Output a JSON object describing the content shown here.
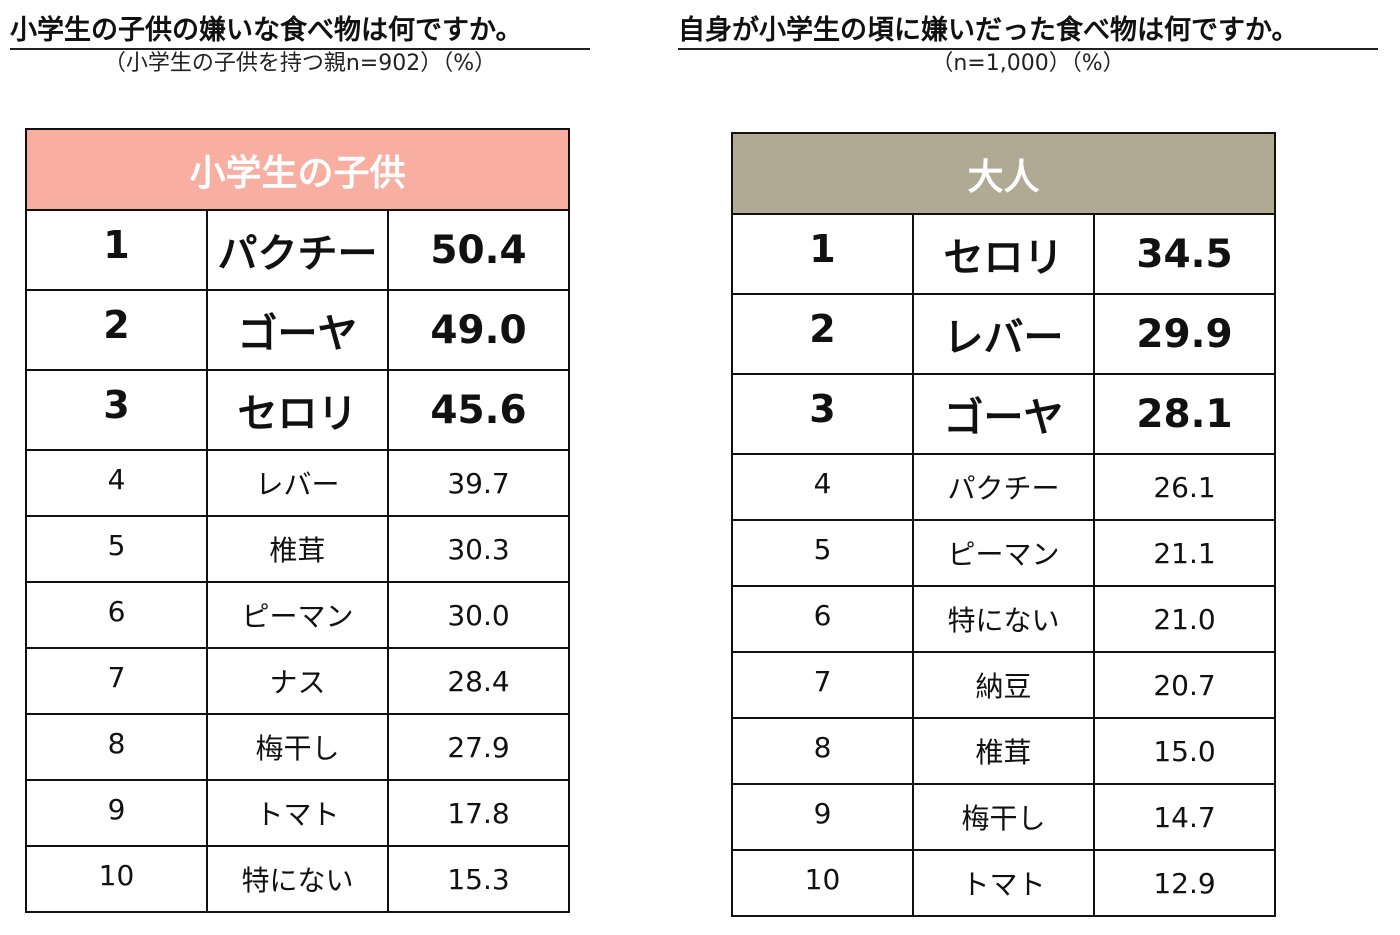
{
  "left": {
    "title": "小学生の子供の嫌いな食べ物は何ですか。",
    "subtitle": "（小学生の子供を持つ親n=902）（%）",
    "header": "小学生の子供",
    "header_color": "#f8aea1",
    "rows": [
      {
        "rank": "1",
        "food": "パクチー",
        "value": "50.4"
      },
      {
        "rank": "2",
        "food": "ゴーヤ",
        "value": "49.0"
      },
      {
        "rank": "3",
        "food": "セロリ",
        "value": "45.6"
      },
      {
        "rank": "4",
        "food": "レバー",
        "value": "39.7"
      },
      {
        "rank": "5",
        "food": "椎茸",
        "value": "30.3"
      },
      {
        "rank": "6",
        "food": "ピーマン",
        "value": "30.0"
      },
      {
        "rank": "7",
        "food": "ナス",
        "value": "28.4"
      },
      {
        "rank": "8",
        "food": "梅干し",
        "value": "27.9"
      },
      {
        "rank": "9",
        "food": "トマト",
        "value": "17.8"
      },
      {
        "rank": "10",
        "food": "特にない",
        "value": "15.3"
      }
    ]
  },
  "right": {
    "title": "自身が小学生の頃に嫌いだった食べ物は何ですか。",
    "subtitle": "（n=1,000）（%）",
    "header": "大人",
    "header_color": "#b0a993",
    "rows": [
      {
        "rank": "1",
        "food": "セロリ",
        "value": "34.5"
      },
      {
        "rank": "2",
        "food": "レバー",
        "value": "29.9"
      },
      {
        "rank": "3",
        "food": "ゴーヤ",
        "value": "28.1"
      },
      {
        "rank": "4",
        "food": "パクチー",
        "value": "26.1"
      },
      {
        "rank": "5",
        "food": "ピーマン",
        "value": "21.1"
      },
      {
        "rank": "6",
        "food": "特にない",
        "value": "21.0"
      },
      {
        "rank": "7",
        "food": "納豆",
        "value": "20.7"
      },
      {
        "rank": "8",
        "food": "椎茸",
        "value": "15.0"
      },
      {
        "rank": "9",
        "food": "梅干し",
        "value": "14.7"
      },
      {
        "rank": "10",
        "food": "トマト",
        "value": "12.9"
      }
    ]
  }
}
